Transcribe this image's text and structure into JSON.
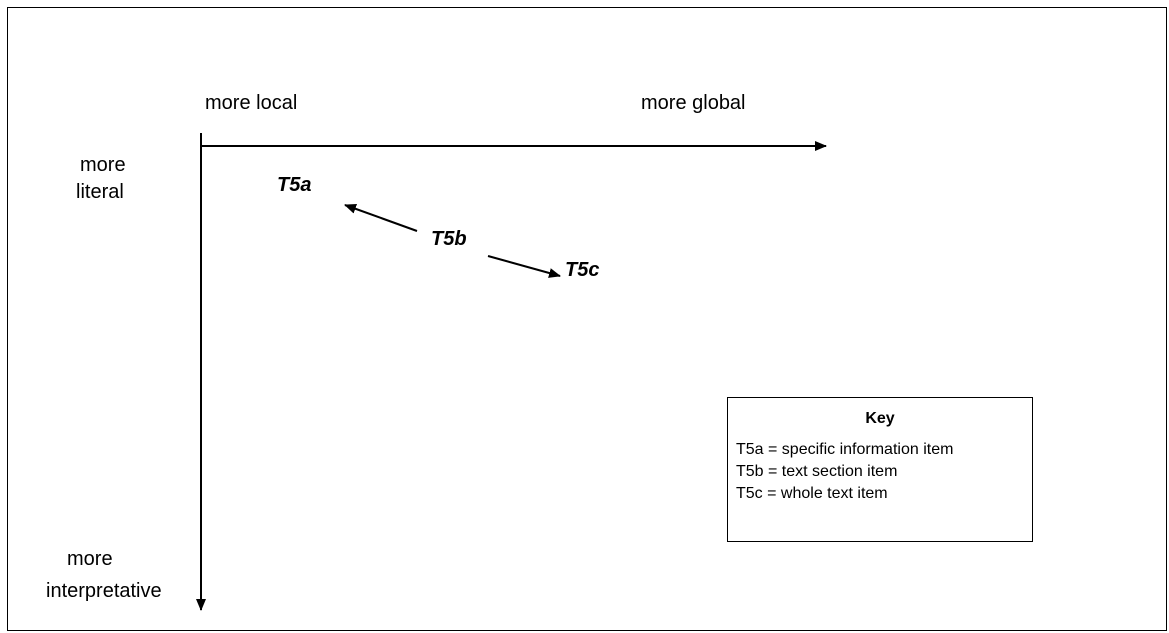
{
  "axes": {
    "x_left_label": "more local",
    "x_right_label": "more global",
    "y_top_label": [
      "more",
      "literal"
    ],
    "y_bottom_label": [
      "more",
      "interpretative"
    ]
  },
  "items": {
    "t5a": "T5a",
    "t5b": "T5b",
    "t5c": "T5c"
  },
  "key": {
    "title": "Key",
    "lines": [
      "T5a = specific information item",
      "T5b = text section item",
      "T5c = whole text item"
    ]
  },
  "colors": {
    "line": "#000000",
    "background": "#ffffff"
  }
}
